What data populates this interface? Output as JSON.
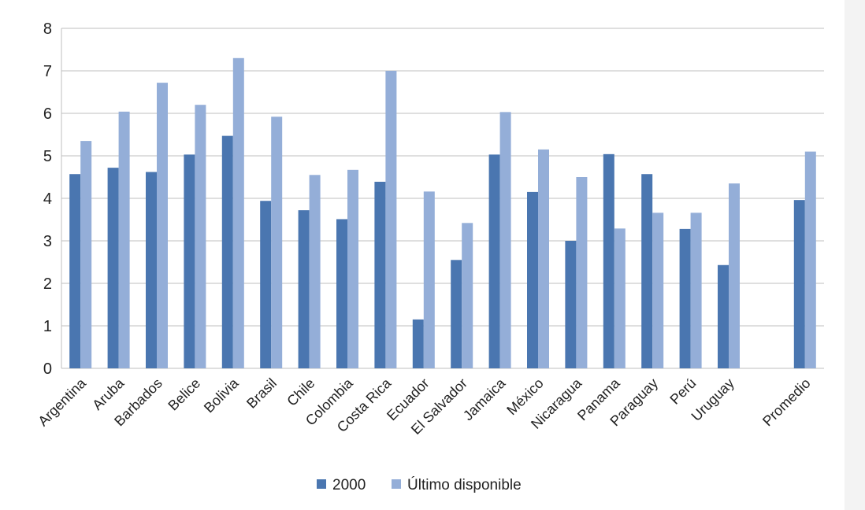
{
  "chart_data": {
    "type": "bar",
    "categories": [
      "Argentina",
      "Aruba",
      "Barbados",
      "Belice",
      "Bolivia",
      "Brasil",
      "Chile",
      "Colombia",
      "Costa Rica",
      "Ecuador",
      "El Salvador",
      "Jamaica",
      "México",
      "Nicaragua",
      "Panama",
      "Paraguay",
      "Perú",
      "Uruguay",
      "",
      "Promedio"
    ],
    "series": [
      {
        "name": "2000",
        "color": "#4a76b0",
        "values": [
          4.57,
          4.72,
          4.62,
          5.03,
          5.47,
          3.94,
          3.72,
          3.51,
          4.39,
          1.15,
          2.55,
          5.03,
          4.15,
          3.0,
          5.04,
          4.57,
          3.28,
          2.43,
          null,
          3.96
        ]
      },
      {
        "name": "Último disponible",
        "color": "#94aed8",
        "values": [
          5.35,
          6.04,
          6.72,
          6.2,
          7.3,
          5.92,
          4.55,
          4.67,
          7.0,
          4.16,
          3.42,
          6.03,
          5.15,
          4.5,
          3.29,
          3.66,
          3.66,
          4.35,
          null,
          5.1
        ]
      }
    ],
    "ylim": [
      0,
      8
    ],
    "yticks": [
      "0",
      "1",
      "2",
      "3",
      "4",
      "5",
      "6",
      "7",
      "8"
    ],
    "grid": true,
    "legend_position": "bottom"
  }
}
